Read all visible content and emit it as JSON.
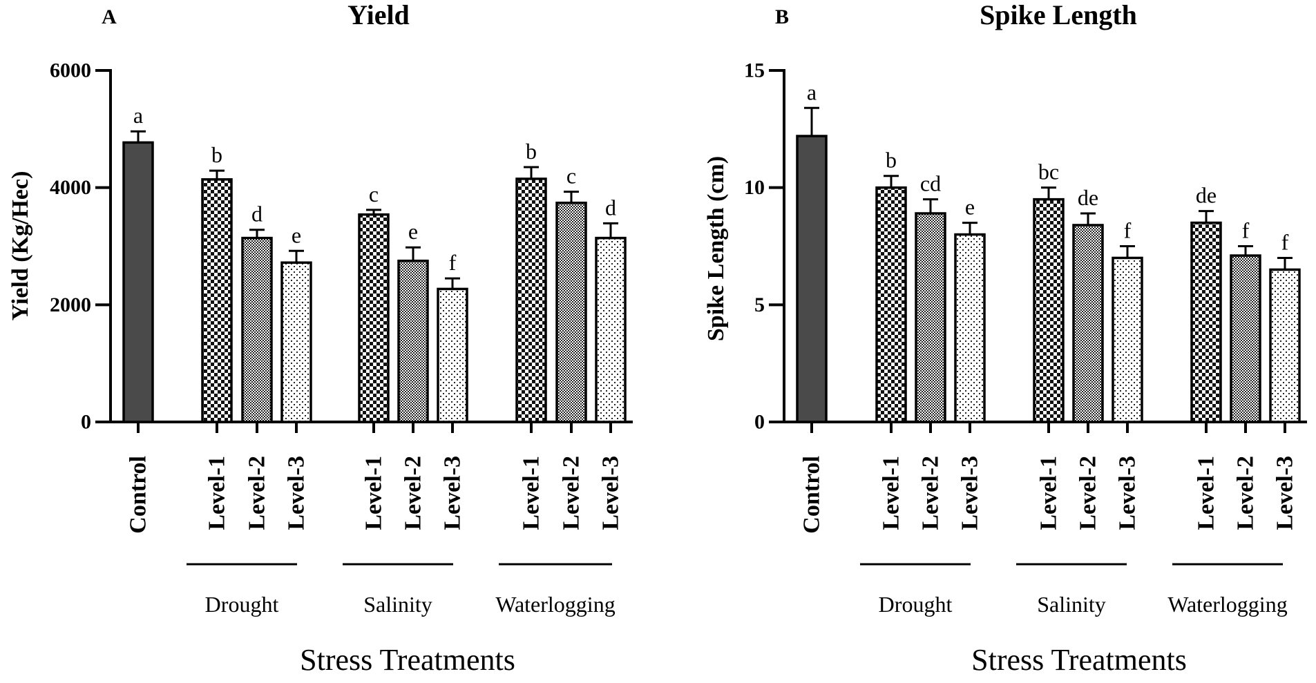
{
  "chart_data": [
    {
      "type": "bar",
      "panel": "A",
      "title": "Yield",
      "ylabel": "Yield (Kg/Hec)",
      "xlabel": "Stress Treatments",
      "ylim": [
        0,
        6000
      ],
      "yticks": [
        0,
        2000,
        4000,
        6000
      ],
      "categories": [
        "Control",
        "Level-1",
        "Level-2",
        "Level-3",
        "Level-1",
        "Level-2",
        "Level-3",
        "Level-1",
        "Level-2",
        "Level-3"
      ],
      "groups": [
        {
          "name": "Drought",
          "categories": [
            1,
            2,
            3
          ]
        },
        {
          "name": "Salinity",
          "categories": [
            4,
            5,
            6
          ]
        },
        {
          "name": "Waterlogging",
          "categories": [
            7,
            8,
            9
          ]
        }
      ],
      "patterns": [
        "solid",
        "checker",
        "fine",
        "dots",
        "checker",
        "fine",
        "dots",
        "checker",
        "fine",
        "dots"
      ],
      "values": [
        4770,
        4140,
        3140,
        2720,
        3540,
        2750,
        2270,
        4150,
        3740,
        3140
      ],
      "errors": [
        190,
        150,
        140,
        200,
        80,
        230,
        180,
        200,
        190,
        250
      ],
      "significance": [
        "a",
        "b",
        "d",
        "e",
        "c",
        "e",
        "f",
        "b",
        "c",
        "d"
      ]
    },
    {
      "type": "bar",
      "panel": "B",
      "title": "Spike Length",
      "ylabel": "Spike  Length (cm)",
      "xlabel": "Stress Treatments",
      "ylim": [
        0,
        15
      ],
      "yticks": [
        0,
        5,
        10,
        15
      ],
      "categories": [
        "Control",
        "Level-1",
        "Level-2",
        "Level-3",
        "Level-1",
        "Level-2",
        "Level-3",
        "Level-1",
        "Level-2",
        "Level-3"
      ],
      "groups": [
        {
          "name": "Drought",
          "categories": [
            1,
            2,
            3
          ]
        },
        {
          "name": "Salinity",
          "categories": [
            4,
            5,
            6
          ]
        },
        {
          "name": "Waterlogging",
          "categories": [
            7,
            8,
            9
          ]
        }
      ],
      "patterns": [
        "solid",
        "checker",
        "fine",
        "dots",
        "checker",
        "fine",
        "dots",
        "checker",
        "fine",
        "dots"
      ],
      "values": [
        12.2,
        10.0,
        8.9,
        8.0,
        9.5,
        8.4,
        7.0,
        8.5,
        7.1,
        6.5
      ],
      "errors": [
        1.2,
        0.5,
        0.6,
        0.5,
        0.5,
        0.5,
        0.5,
        0.5,
        0.4,
        0.5
      ],
      "significance": [
        "a",
        "b",
        "cd",
        "e",
        "bc",
        "de",
        "f",
        "de",
        "f",
        "f"
      ]
    }
  ]
}
